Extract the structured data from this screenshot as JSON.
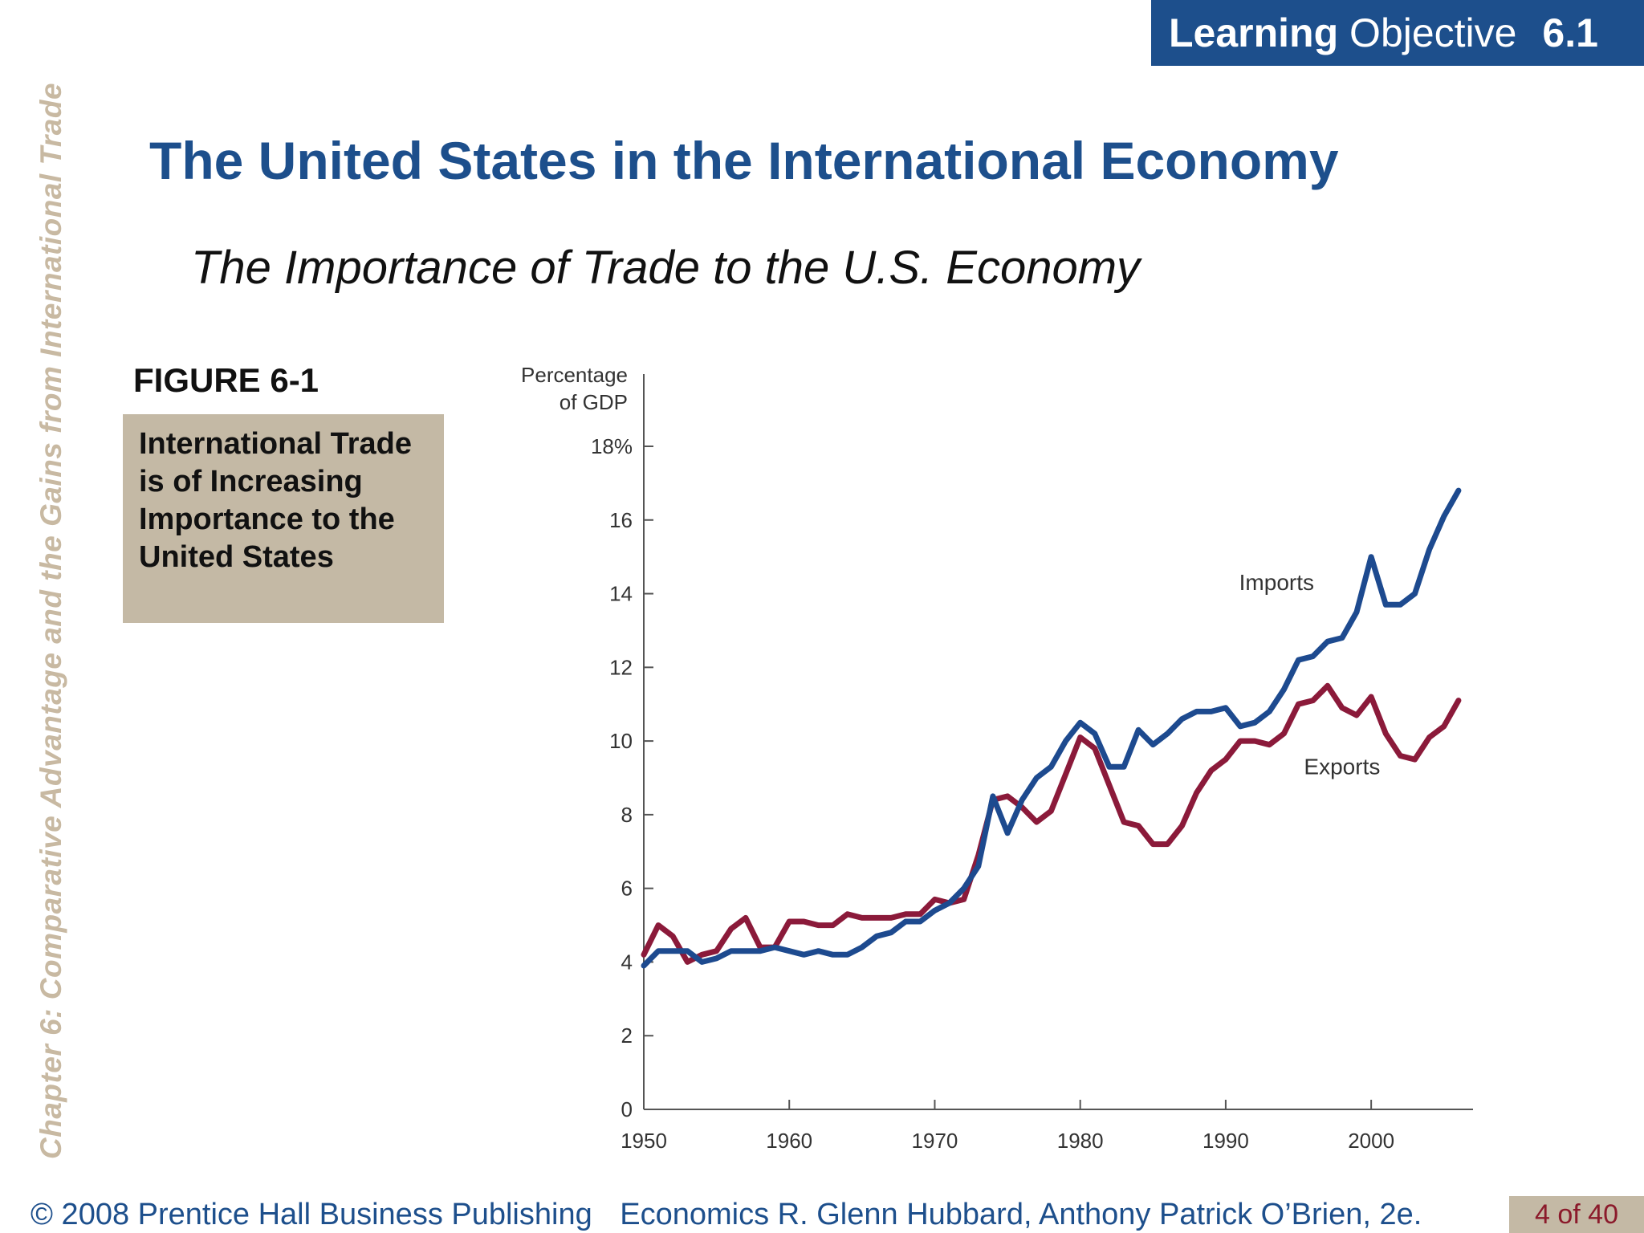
{
  "sidebar": {
    "chapter_title": "Chapter 6:  Comparative Advantage and the Gains from International Trade"
  },
  "banner": {
    "word1": "Learning",
    "word2": "Objective",
    "number": "6.1"
  },
  "slide": {
    "title": "The United States in the International Economy",
    "subtitle": "The Importance of Trade to the U.S. Economy"
  },
  "figure": {
    "label": "FIGURE 6-1",
    "caption": "International Trade is of Increasing Importance to the United States"
  },
  "footer": {
    "copyright": "© 2008 Prentice Hall Business Publishing",
    "book": "Economics  R. Glenn Hubbard, Anthony Patrick O’Brien, 2e.",
    "page": "4 of 40"
  },
  "colors": {
    "imports": "#1d4a8f",
    "exports": "#8b1a3a",
    "brand": "#1d4f8c",
    "accent_box": "#c4b9a5"
  },
  "chart_data": {
    "type": "line",
    "title": "",
    "ylabel_line1": "Percentage",
    "ylabel_line2": "of GDP",
    "xlabel": "",
    "xlim": [
      1950,
      2007
    ],
    "ylim": [
      0,
      18
    ],
    "xticks": [
      1950,
      1960,
      1970,
      1980,
      1990,
      2000
    ],
    "yticks": [
      0,
      2,
      4,
      6,
      8,
      10,
      12,
      14,
      16,
      18
    ],
    "ytick_labels": [
      "0",
      "2",
      "4",
      "6",
      "8",
      "10",
      "12",
      "14",
      "16",
      "18%"
    ],
    "grid": false,
    "series": [
      {
        "name": "Imports",
        "color": "#1d4a8f",
        "points": [
          [
            1950,
            3.9
          ],
          [
            1951,
            4.3
          ],
          [
            1952,
            4.3
          ],
          [
            1953,
            4.3
          ],
          [
            1954,
            4.0
          ],
          [
            1955,
            4.1
          ],
          [
            1956,
            4.3
          ],
          [
            1957,
            4.3
          ],
          [
            1958,
            4.3
          ],
          [
            1959,
            4.4
          ],
          [
            1960,
            4.3
          ],
          [
            1961,
            4.2
          ],
          [
            1962,
            4.3
          ],
          [
            1963,
            4.2
          ],
          [
            1964,
            4.2
          ],
          [
            1965,
            4.4
          ],
          [
            1966,
            4.7
          ],
          [
            1967,
            4.8
          ],
          [
            1968,
            5.1
          ],
          [
            1969,
            5.1
          ],
          [
            1970,
            5.4
          ],
          [
            1971,
            5.6
          ],
          [
            1972,
            6.0
          ],
          [
            1973,
            6.6
          ],
          [
            1974,
            8.5
          ],
          [
            1975,
            7.5
          ],
          [
            1976,
            8.4
          ],
          [
            1977,
            9.0
          ],
          [
            1978,
            9.3
          ],
          [
            1979,
            10.0
          ],
          [
            1980,
            10.5
          ],
          [
            1981,
            10.2
          ],
          [
            1982,
            9.3
          ],
          [
            1983,
            9.3
          ],
          [
            1984,
            10.3
          ],
          [
            1985,
            9.9
          ],
          [
            1986,
            10.2
          ],
          [
            1987,
            10.6
          ],
          [
            1988,
            10.8
          ],
          [
            1989,
            10.8
          ],
          [
            1990,
            10.9
          ],
          [
            1991,
            10.4
          ],
          [
            1992,
            10.5
          ],
          [
            1993,
            10.8
          ],
          [
            1994,
            11.4
          ],
          [
            1995,
            12.2
          ],
          [
            1996,
            12.3
          ],
          [
            1997,
            12.7
          ],
          [
            1998,
            12.8
          ],
          [
            1999,
            13.5
          ],
          [
            2000,
            15.0
          ],
          [
            2001,
            13.7
          ],
          [
            2002,
            13.7
          ],
          [
            2003,
            14.0
          ],
          [
            2004,
            15.2
          ],
          [
            2005,
            16.1
          ],
          [
            2006,
            16.8
          ]
        ]
      },
      {
        "name": "Exports",
        "color": "#8b1a3a",
        "points": [
          [
            1950,
            4.2
          ],
          [
            1951,
            5.0
          ],
          [
            1952,
            4.7
          ],
          [
            1953,
            4.0
          ],
          [
            1954,
            4.2
          ],
          [
            1955,
            4.3
          ],
          [
            1956,
            4.9
          ],
          [
            1957,
            5.2
          ],
          [
            1958,
            4.4
          ],
          [
            1959,
            4.4
          ],
          [
            1960,
            5.1
          ],
          [
            1961,
            5.1
          ],
          [
            1962,
            5.0
          ],
          [
            1963,
            5.0
          ],
          [
            1964,
            5.3
          ],
          [
            1965,
            5.2
          ],
          [
            1966,
            5.2
          ],
          [
            1967,
            5.2
          ],
          [
            1968,
            5.3
          ],
          [
            1969,
            5.3
          ],
          [
            1970,
            5.7
          ],
          [
            1971,
            5.6
          ],
          [
            1972,
            5.7
          ],
          [
            1973,
            6.9
          ],
          [
            1974,
            8.4
          ],
          [
            1975,
            8.5
          ],
          [
            1976,
            8.2
          ],
          [
            1977,
            7.8
          ],
          [
            1978,
            8.1
          ],
          [
            1979,
            9.1
          ],
          [
            1980,
            10.1
          ],
          [
            1981,
            9.8
          ],
          [
            1982,
            8.8
          ],
          [
            1983,
            7.8
          ],
          [
            1984,
            7.7
          ],
          [
            1985,
            7.2
          ],
          [
            1986,
            7.2
          ],
          [
            1987,
            7.7
          ],
          [
            1988,
            8.6
          ],
          [
            1989,
            9.2
          ],
          [
            1990,
            9.5
          ],
          [
            1991,
            10.0
          ],
          [
            1992,
            10.0
          ],
          [
            1993,
            9.9
          ],
          [
            1994,
            10.2
          ],
          [
            1995,
            11.0
          ],
          [
            1996,
            11.1
          ],
          [
            1997,
            11.5
          ],
          [
            1998,
            10.9
          ],
          [
            1999,
            10.7
          ],
          [
            2000,
            11.2
          ],
          [
            2001,
            10.2
          ],
          [
            2002,
            9.6
          ],
          [
            2003,
            9.5
          ],
          [
            2004,
            10.1
          ],
          [
            2005,
            10.4
          ],
          [
            2006,
            11.1
          ]
        ]
      }
    ]
  }
}
